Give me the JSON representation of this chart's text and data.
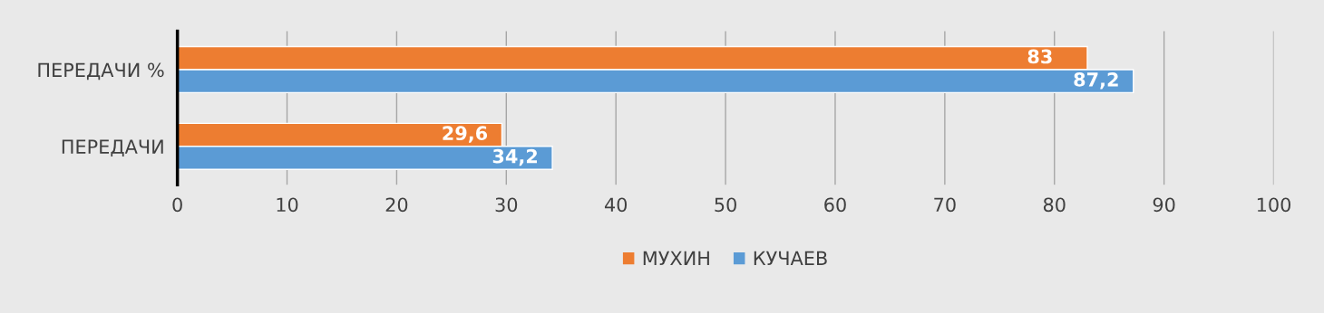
{
  "chart_data": {
    "type": "bar",
    "orientation": "horizontal",
    "categories": [
      "ПЕРЕДАЧИ %",
      "ПЕРЕДАЧИ"
    ],
    "series": [
      {
        "name": "МУХИН",
        "color": "#ed7d31",
        "values": [
          83,
          29.6
        ],
        "value_labels": [
          "83",
          "29,6"
        ]
      },
      {
        "name": "КУЧАЕВ",
        "color": "#5b9bd5",
        "values": [
          87.2,
          34.2
        ],
        "value_labels": [
          "87,2",
          "34,2"
        ]
      }
    ],
    "xlim": [
      0,
      100
    ],
    "xticks": [
      0,
      10,
      20,
      30,
      40,
      50,
      60,
      70,
      80,
      90,
      100
    ],
    "grid": "x",
    "legend": "bottom"
  }
}
